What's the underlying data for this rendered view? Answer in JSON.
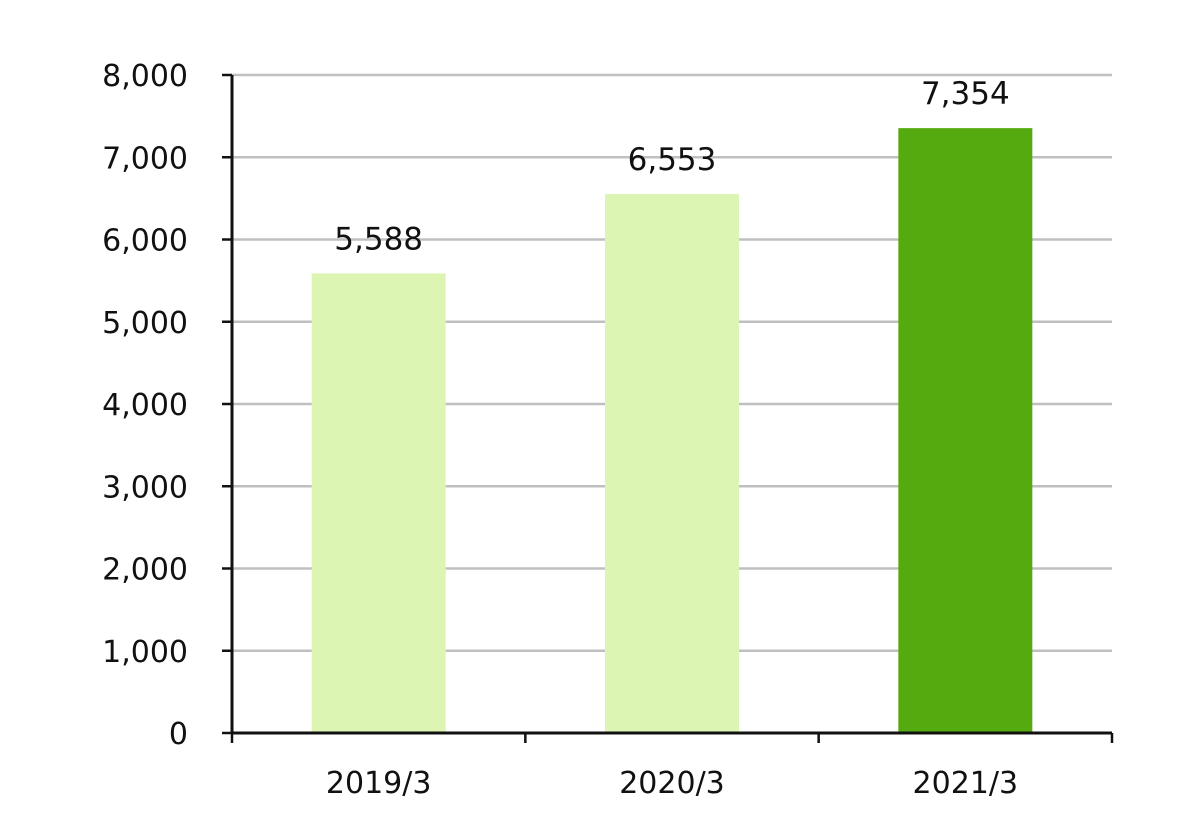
{
  "chart_data": {
    "type": "bar",
    "categories": [
      "2019/3",
      "2020/3",
      "2021/3"
    ],
    "values": [
      5588,
      6553,
      7354
    ],
    "value_labels": [
      "5,588",
      "6,553",
      "7,354"
    ],
    "ylim": [
      0,
      8000
    ],
    "yticks": [
      0,
      1000,
      2000,
      3000,
      4000,
      5000,
      6000,
      7000,
      8000
    ],
    "ytick_labels": [
      "0",
      "1,000",
      "2,000",
      "3,000",
      "4,000",
      "5,000",
      "6,000",
      "7,000",
      "8,000"
    ],
    "grid": true,
    "bar_colors": [
      "#dcf5b3",
      "#dcf5b3",
      "#55aa10"
    ],
    "grid_color": "#c0c0c0",
    "axis_color": "#111111"
  }
}
